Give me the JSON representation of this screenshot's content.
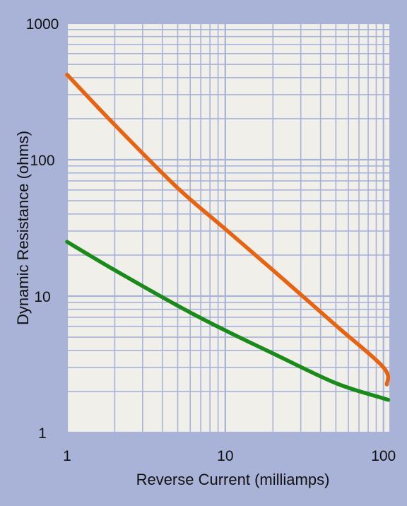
{
  "chart_data": {
    "type": "line",
    "title": "",
    "xlabel": "Reverse Current (milliamps)",
    "ylabel": "Dynamic Resistance (ohms)",
    "x_scale": "log",
    "y_scale": "log",
    "xlim": [
      1,
      110
    ],
    "ylim": [
      1,
      1000
    ],
    "x_ticks": [
      1,
      10,
      100
    ],
    "x_tick_labels": [
      "1",
      "10",
      "100"
    ],
    "y_ticks": [
      1,
      10,
      100,
      1000
    ],
    "y_tick_labels": [
      "1",
      "10",
      "100",
      "1000"
    ],
    "grid": true,
    "legend": "none",
    "colors": {
      "background": "#a9b3d8",
      "plot_background": "#f0efea",
      "grid": "#a9b3d8"
    },
    "series": [
      {
        "color": "#e8620f",
        "x": [
          1,
          2,
          5,
          10,
          20,
          50,
          100,
          105
        ],
        "y": [
          420,
          180,
          62,
          31,
          15.5,
          6.1,
          3.0,
          2.25
        ]
      },
      {
        "color": "#1a8a1a",
        "x": [
          1,
          2,
          5,
          10,
          20,
          50,
          100,
          105
        ],
        "y": [
          25,
          15.5,
          8.5,
          5.6,
          3.8,
          2.3,
          1.78,
          1.75
        ]
      }
    ]
  }
}
